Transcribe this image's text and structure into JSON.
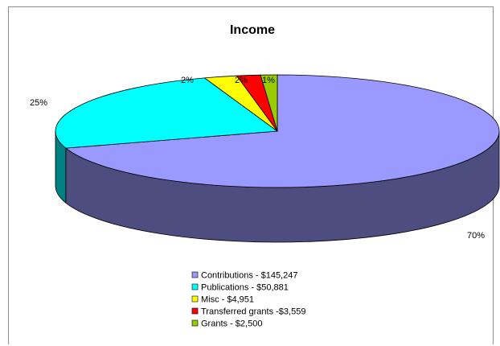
{
  "chart_data": {
    "type": "pie",
    "title": "Income",
    "three_d": true,
    "legend_position": "bottom",
    "slices": [
      {
        "label": "Contributions - $145,247",
        "value": 145247,
        "percent_label": "70%",
        "color": "#9999ff",
        "side_color": "#4d4d80"
      },
      {
        "label": "Publications - $50,881",
        "value": 50881,
        "percent_label": "25%",
        "color": "#00ffff",
        "side_color": "#008080"
      },
      {
        "label": "Misc - $4,951",
        "value": 4951,
        "percent_label": "2%",
        "color": "#ffff00",
        "side_color": "#808000"
      },
      {
        "label": "Transferred grants -$3,559",
        "value": 3559,
        "percent_label": "2%",
        "color": "#ff0000",
        "side_color": "#800000"
      },
      {
        "label": "Grants - $2,500",
        "value": 2500,
        "percent_label": "1%",
        "color": "#99cc00",
        "side_color": "#4d6600"
      }
    ]
  }
}
